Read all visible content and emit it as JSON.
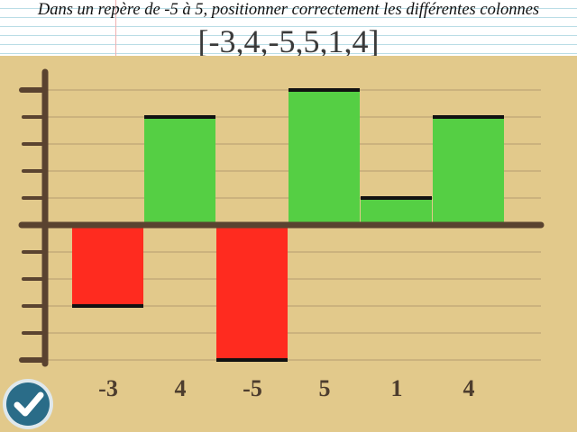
{
  "instruction": "Dans un repère de -5 à 5, positionner correctement les différentes colonnes",
  "sequence": "[-3,4,-5,5,1,4]",
  "colors": {
    "background": "#e2c98b",
    "positive": "#55cf44",
    "negative": "#ff2b1f",
    "axis": "#5a4330",
    "gridline": "#b49a70",
    "label": "#4d3d2e"
  },
  "chart_data": {
    "type": "bar",
    "categories": [
      "-3",
      "4",
      "-5",
      "5",
      "1",
      "4"
    ],
    "values": [
      -3,
      4,
      -5,
      5,
      1,
      4
    ],
    "ylim": [
      -5,
      5
    ],
    "grid": true,
    "title": "",
    "xlabel": "",
    "ylabel": ""
  },
  "validate_button": {
    "icon": "checkmark-icon"
  }
}
